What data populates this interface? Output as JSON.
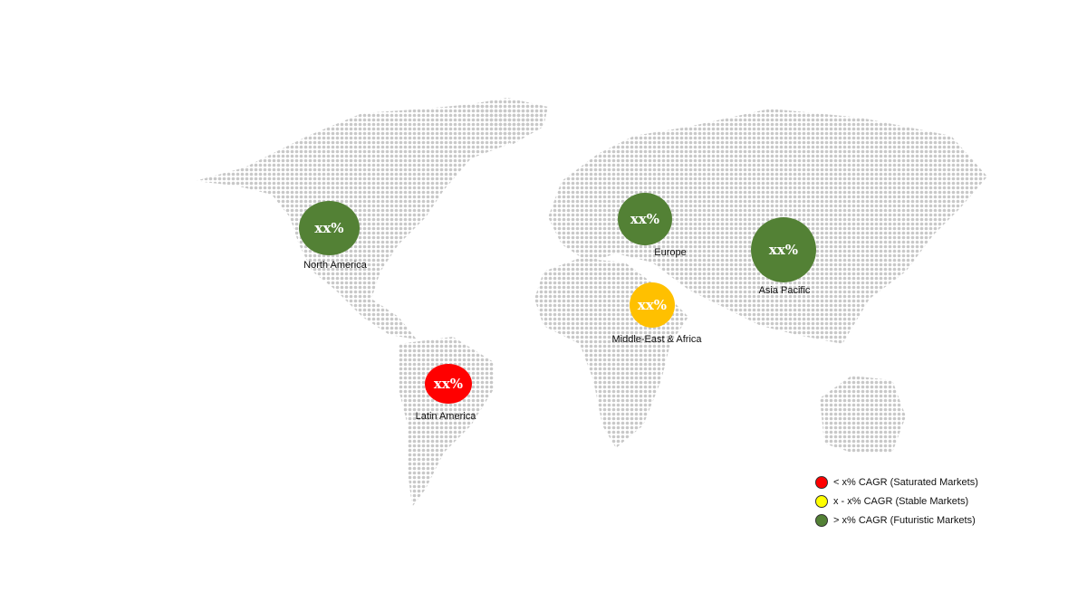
{
  "colors": {
    "dots": "#c8c8c8",
    "red": "#ff0000",
    "yellow": "#ffc000",
    "green": "#538135",
    "legend_yellow": "#ffff00"
  },
  "regions": [
    {
      "name": "North America",
      "value": "xx%",
      "status": "green"
    },
    {
      "name": "Europe",
      "value": "xx%",
      "status": "green"
    },
    {
      "name": "Asia Pacific",
      "value": "xx%",
      "status": "green"
    },
    {
      "name": "Middle-East & Africa",
      "value": "xx%",
      "status": "yellow"
    },
    {
      "name": "Latin America",
      "value": "xx%",
      "status": "red"
    }
  ],
  "legend": [
    {
      "label": "< x% CAGR (Saturated Markets)",
      "color": "#ff0000"
    },
    {
      "label": "x - x% CAGR (Stable Markets)",
      "color": "#ffff00"
    },
    {
      "label": "> x% CAGR (Futuristic Markets)",
      "color": "#538135"
    }
  ]
}
